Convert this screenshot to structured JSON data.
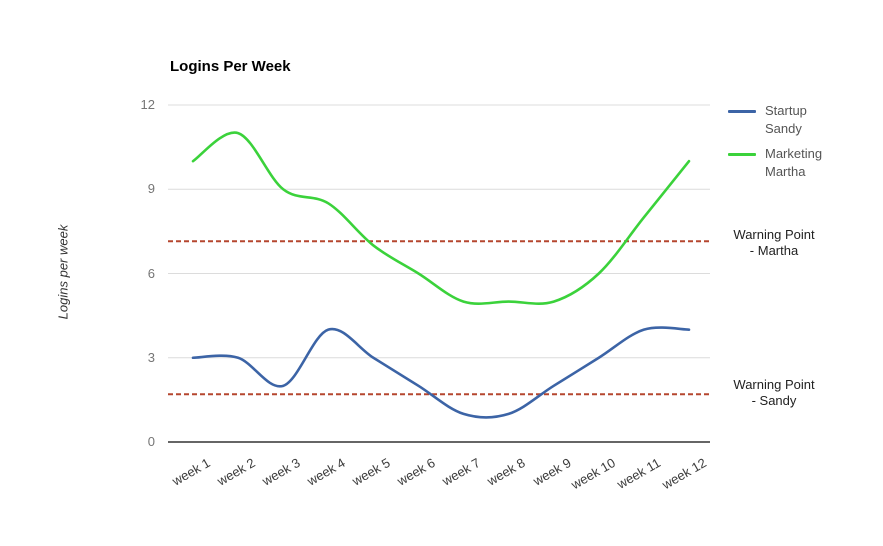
{
  "title": "Logins Per Week",
  "chart_data": {
    "type": "line",
    "title": "Logins Per Week",
    "xlabel": "",
    "ylabel": "Logins per week",
    "categories": [
      "week 1",
      "week 2",
      "week 3",
      "week 4",
      "week 5",
      "week 6",
      "week 7",
      "week 8",
      "week 9",
      "week 10",
      "week 11",
      "week 12"
    ],
    "series": [
      {
        "name": "Startup Sandy",
        "color": "#3c64a6",
        "values": [
          3,
          3,
          2,
          4,
          3,
          2,
          1,
          1,
          2,
          3,
          4,
          4
        ]
      },
      {
        "name": "Marketing Martha",
        "color": "#3bd23b",
        "values": [
          10,
          11,
          9,
          8.5,
          7,
          6,
          5,
          5,
          5,
          6,
          8,
          10
        ]
      }
    ],
    "warning_lines": [
      {
        "label": "Warning Point - Martha",
        "value": 7.15,
        "color": "#b5462f",
        "style": "dashed"
      },
      {
        "label": "Warning Point - Sandy",
        "value": 1.7,
        "color": "#b5462f",
        "style": "dashed"
      }
    ],
    "ylim": [
      0,
      12
    ],
    "yticks": [
      0,
      3,
      6,
      9,
      12
    ],
    "grid": true,
    "line_shape": "smooth",
    "legend_position": "right"
  },
  "annotations": {
    "martha_warning": {
      "line1": "Warning Point",
      "line2": "- Martha"
    },
    "sandy_warning": {
      "line1": "Warning Point",
      "line2": "- Sandy"
    }
  },
  "colors": {
    "grid": "#dcdcdc",
    "axis": "#333333",
    "tick_text": "#757575"
  }
}
